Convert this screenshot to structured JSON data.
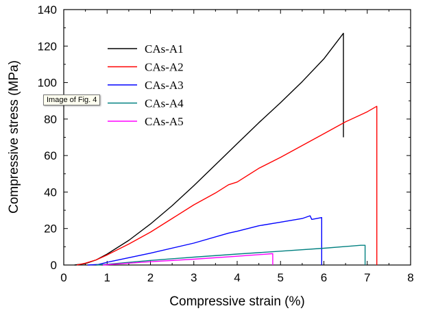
{
  "tooltip": {
    "text": "Image of Fig. 4"
  },
  "chart_data": {
    "type": "line",
    "title": "",
    "xlabel": "Compressive strain (%)",
    "ylabel": "Compressive stress (MPa)",
    "xlim": [
      0,
      8
    ],
    "ylim": [
      0,
      140
    ],
    "xticks": [
      0,
      1,
      2,
      3,
      4,
      5,
      6,
      7,
      8
    ],
    "yticks": [
      0,
      20,
      40,
      60,
      80,
      100,
      120,
      140
    ],
    "grid": false,
    "legend": "top-left",
    "series": [
      {
        "name": "CAs-A1",
        "color": "#000000",
        "points": [
          [
            0.25,
            0
          ],
          [
            0.5,
            0.8
          ],
          [
            0.75,
            2.8
          ],
          [
            1.0,
            6.0
          ],
          [
            1.5,
            13.5
          ],
          [
            2.0,
            22.5
          ],
          [
            2.5,
            32.5
          ],
          [
            3.0,
            43.5
          ],
          [
            3.5,
            55
          ],
          [
            4.0,
            66.5
          ],
          [
            4.5,
            78
          ],
          [
            5.0,
            89
          ],
          [
            5.5,
            100.5
          ],
          [
            6.0,
            113
          ],
          [
            6.45,
            127
          ],
          [
            6.45,
            70
          ]
        ]
      },
      {
        "name": "CAs-A2",
        "color": "#ff0000",
        "points": [
          [
            0.3,
            0
          ],
          [
            0.5,
            1.0
          ],
          [
            0.75,
            2.8
          ],
          [
            1.0,
            5.5
          ],
          [
            1.5,
            11.5
          ],
          [
            2.0,
            18.0
          ],
          [
            2.5,
            25.5
          ],
          [
            3.0,
            33
          ],
          [
            3.5,
            39.5
          ],
          [
            3.8,
            44
          ],
          [
            4.0,
            45.5
          ],
          [
            4.5,
            53
          ],
          [
            5.0,
            59
          ],
          [
            5.5,
            65.5
          ],
          [
            6.0,
            72
          ],
          [
            6.5,
            78.5
          ],
          [
            7.0,
            84
          ],
          [
            7.22,
            87
          ],
          [
            7.22,
            0
          ]
        ]
      },
      {
        "name": "CAs-A3",
        "color": "#0000ff",
        "points": [
          [
            0.55,
            0
          ],
          [
            0.8,
            0.3
          ],
          [
            1.0,
            1.5
          ],
          [
            2.0,
            6.5
          ],
          [
            3.0,
            12
          ],
          [
            3.8,
            17.5
          ],
          [
            4.0,
            18.5
          ],
          [
            4.5,
            21.5
          ],
          [
            5.0,
            23.5
          ],
          [
            5.5,
            25.5
          ],
          [
            5.68,
            27
          ],
          [
            5.72,
            25
          ],
          [
            5.95,
            26
          ],
          [
            5.95,
            0
          ]
        ]
      },
      {
        "name": "CAs-A4",
        "color": "#008080",
        "points": [
          [
            0.75,
            0
          ],
          [
            1.0,
            0.4
          ],
          [
            2.0,
            2.5
          ],
          [
            3.0,
            4.3
          ],
          [
            4.0,
            6.0
          ],
          [
            5.0,
            7.6
          ],
          [
            6.0,
            9.2
          ],
          [
            6.85,
            10.8
          ],
          [
            6.95,
            10.8
          ],
          [
            6.95,
            0
          ]
        ]
      },
      {
        "name": "CAs-A5",
        "color": "#ff00ff",
        "points": [
          [
            0.9,
            0
          ],
          [
            1.5,
            1.0
          ],
          [
            2.0,
            1.8
          ],
          [
            3.0,
            3.2
          ],
          [
            4.0,
            4.8
          ],
          [
            4.8,
            6.2
          ],
          [
            4.82,
            6.2
          ],
          [
            4.82,
            0
          ]
        ]
      }
    ]
  }
}
